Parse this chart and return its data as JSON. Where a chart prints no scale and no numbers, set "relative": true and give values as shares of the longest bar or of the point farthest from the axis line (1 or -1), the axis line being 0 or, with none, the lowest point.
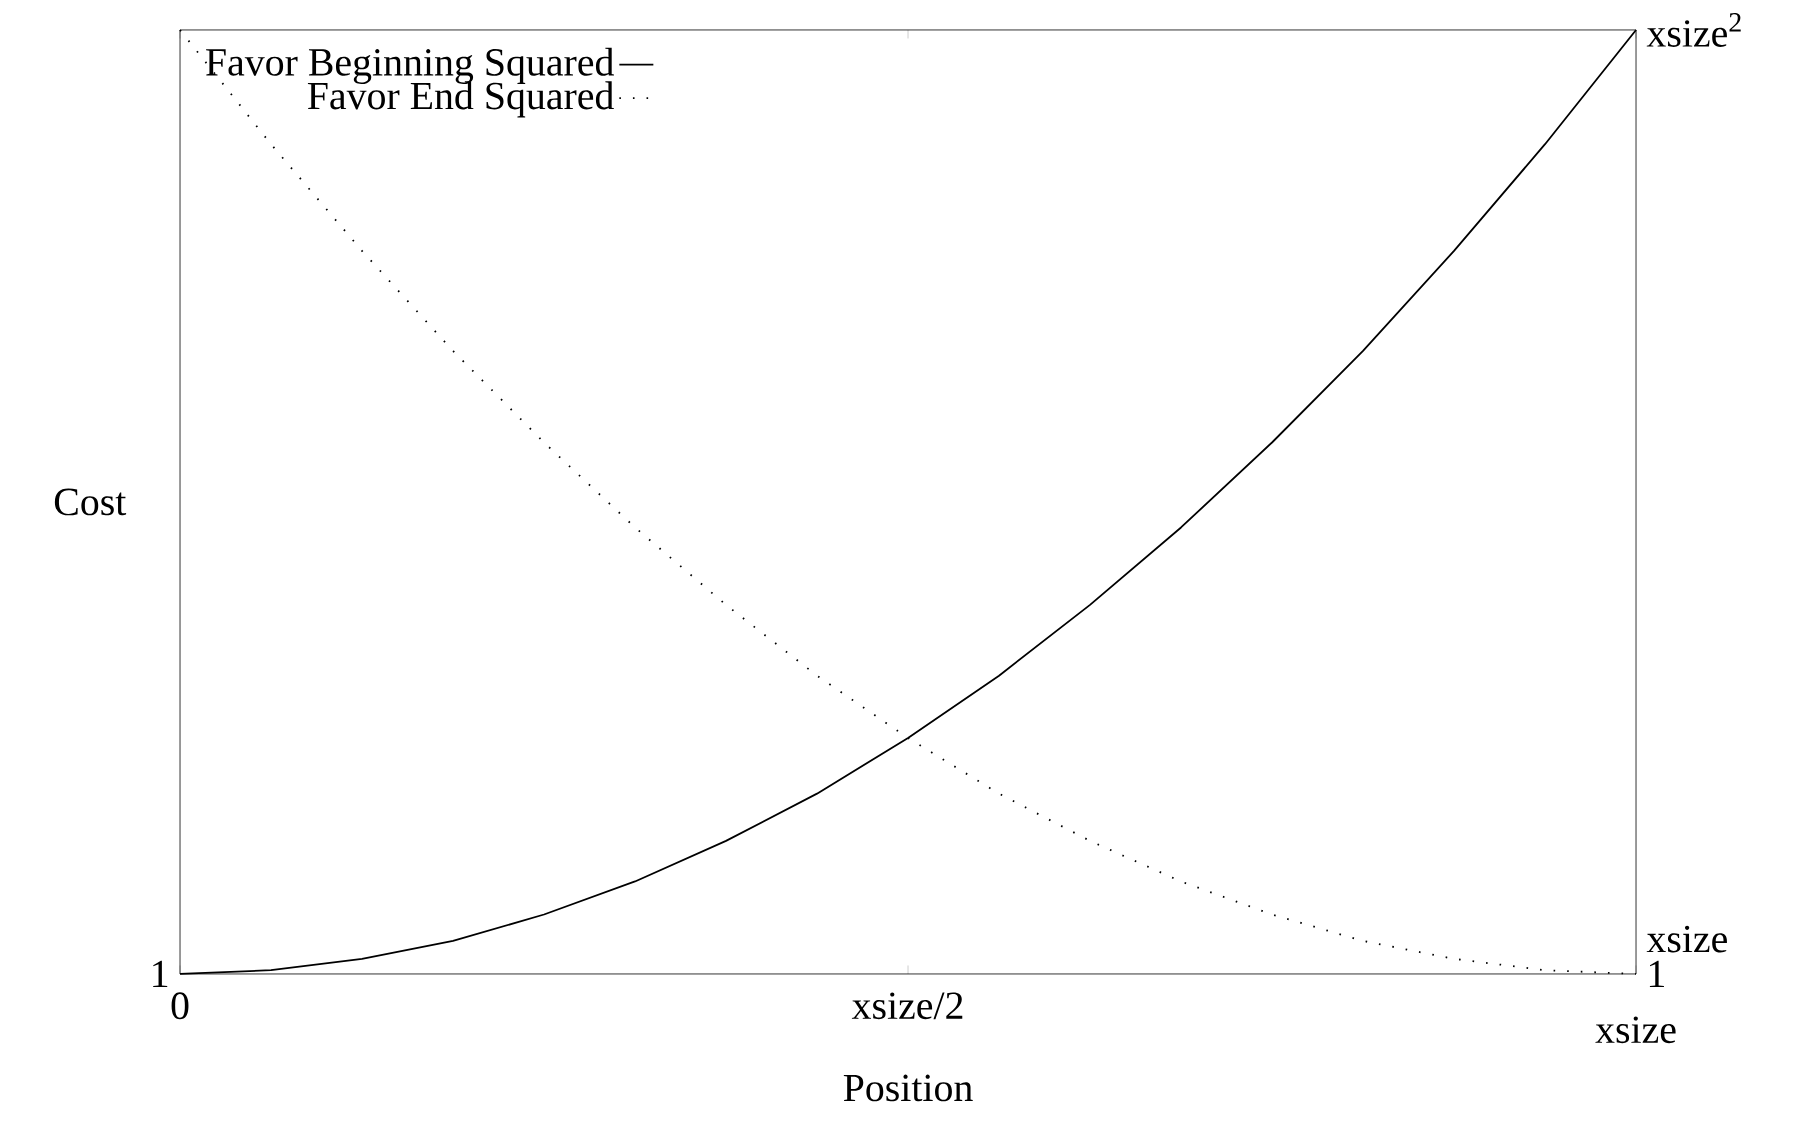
{
  "chart_data": {
    "type": "line",
    "xlabel": "Position",
    "ylabel": "Cost",
    "relative": true,
    "categories": [
      null,
      null,
      null,
      null,
      null,
      null,
      null,
      null,
      null,
      null,
      null,
      null,
      null,
      null,
      null,
      null,
      null
    ],
    "series": [
      {
        "name": "Favor Beginning Squared",
        "color": "#000000",
        "line_style": "solid",
        "values": [
          0,
          0.004,
          0.016,
          0.035,
          0.063,
          0.098,
          0.141,
          0.191,
          0.25,
          0.316,
          0.391,
          0.473,
          0.563,
          0.66,
          0.766,
          0.879,
          1
        ]
      },
      {
        "name": "Favor End Squared",
        "color": "#000000",
        "line_style": "dotted",
        "values": [
          1,
          0.879,
          0.766,
          0.66,
          0.563,
          0.473,
          0.391,
          0.316,
          0.25,
          0.191,
          0.141,
          0.098,
          0.063,
          0.035,
          0.016,
          0.004,
          0
        ]
      }
    ],
    "annotations": [
      "1",
      "0",
      "xsize/2",
      "xsize",
      "1",
      "xsize",
      "xsize$^{2}$"
    ],
    "legend": "top left",
    "marker": "none"
  }
}
